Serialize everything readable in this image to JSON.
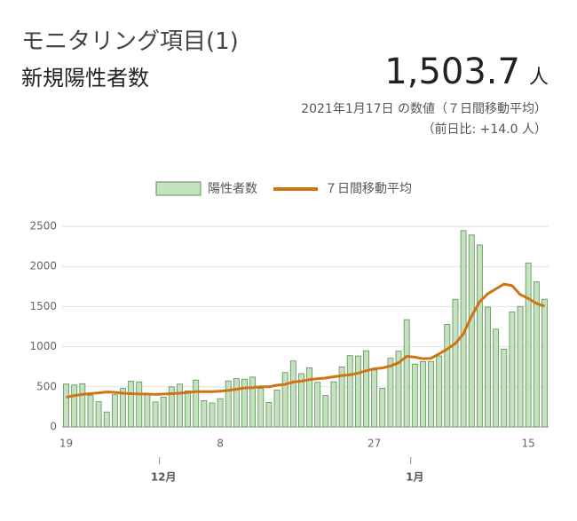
{
  "header": {
    "title": "モニタリング項目(1)",
    "subtitle": "新規陽性者数",
    "value": "1,503.7",
    "unit": "人",
    "date_note": "2021年1月17日 の数値（７日間移動平均）",
    "change_note": "（前日比: +14.0 人）"
  },
  "chart_data": {
    "type": "bar",
    "categories": [
      "19",
      null,
      null,
      null,
      null,
      null,
      null,
      null,
      null,
      null,
      null,
      null,
      null,
      null,
      null,
      null,
      null,
      null,
      null,
      "8",
      null,
      null,
      null,
      null,
      null,
      null,
      null,
      null,
      null,
      null,
      null,
      null,
      null,
      null,
      null,
      null,
      null,
      null,
      "27",
      null,
      null,
      null,
      null,
      null,
      null,
      null,
      null,
      null,
      null,
      null,
      null,
      null,
      null,
      null,
      null,
      null,
      null,
      "15",
      null,
      null
    ],
    "month_labels": [
      null,
      null,
      null,
      null,
      null,
      null,
      null,
      null,
      null,
      null,
      null,
      null,
      "12月",
      null,
      null,
      null,
      null,
      null,
      null,
      null,
      null,
      null,
      null,
      null,
      null,
      null,
      null,
      null,
      null,
      null,
      null,
      null,
      null,
      null,
      null,
      null,
      null,
      null,
      null,
      null,
      null,
      null,
      null,
      "1月",
      null,
      null,
      null,
      null,
      null,
      null,
      null,
      null,
      null,
      null,
      null,
      null,
      null,
      null,
      null,
      null
    ],
    "series": [
      {
        "name": "陽性者数",
        "type": "bar",
        "color": "#c3e2bd",
        "stroke": "#5c8f58",
        "values": [
          534,
          522,
          539,
          391,
          314,
          186,
          401,
          481,
          570,
          561,
          418,
          311,
          372,
          500,
          533,
          449,
          584,
          327,
          299,
          352,
          572,
          602,
          595,
          621,
          480,
          305,
          460,
          678,
          822,
          664,
          736,
          556,
          392,
          563,
          748,
          888,
          884,
          949,
          708,
          481,
          856,
          944,
          1337,
          783,
          814,
          816,
          884,
          1278,
          1591,
          2447,
          2392,
          2268,
          1494,
          1219,
          970,
          1433,
          1502,
          2044,
          1809,
          1592
        ]
      },
      {
        "name": "７日間移動平均",
        "type": "line",
        "color": "#cf7415",
        "values": [
          370,
          390,
          405,
          415,
          425,
          435,
          430,
          420,
          415,
          410,
          410,
          405,
          410,
          415,
          420,
          430,
          440,
          440,
          440,
          445,
          455,
          470,
          485,
          490,
          500,
          500,
          520,
          530,
          560,
          570,
          590,
          600,
          610,
          625,
          640,
          650,
          670,
          700,
          725,
          735,
          760,
          800,
          880,
          870,
          850,
          855,
          910,
          970,
          1040,
          1160,
          1380,
          1560,
          1660,
          1720,
          1780,
          1760,
          1650,
          1600,
          1540,
          1503.7
        ]
      }
    ],
    "ylim": [
      0,
      2500
    ],
    "yticks": [
      0,
      500,
      1000,
      1500,
      2000,
      2500
    ],
    "grid": true,
    "legend": "top"
  }
}
